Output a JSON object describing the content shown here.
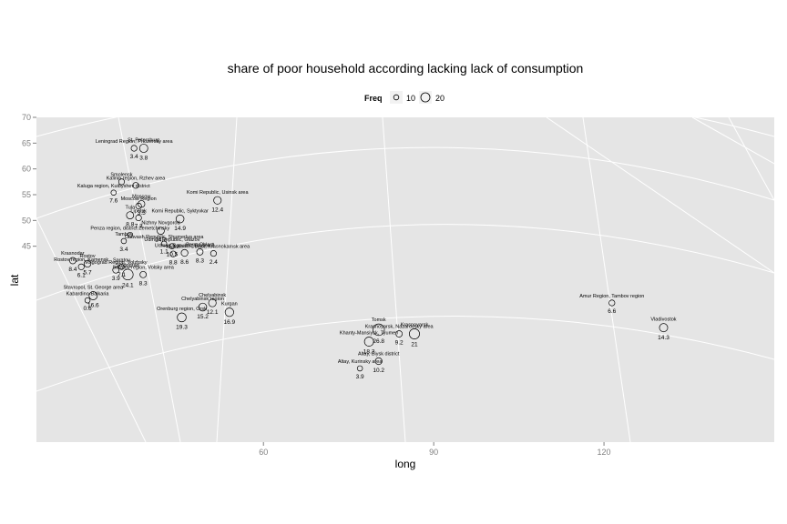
{
  "chart_data": {
    "type": "scatter",
    "title": "share of poor household according lacking lack of consumption",
    "xlabel": "long",
    "ylabel": "lat",
    "xlim": [
      20,
      150
    ],
    "ylim": [
      7,
      70
    ],
    "x_ticks": [
      60,
      90,
      120
    ],
    "y_ticks": [
      45,
      50,
      55,
      60,
      65,
      70
    ],
    "x_tick_labels": [
      "60",
      "90",
      "120"
    ],
    "y_tick_labels": [
      "45",
      "50",
      "55",
      "60",
      "65",
      "70"
    ],
    "legend": {
      "title": "Freq",
      "position": "top",
      "entries": [
        {
          "label": "10",
          "value": 10
        },
        {
          "label": "20",
          "value": 20
        }
      ]
    },
    "colors": {
      "panel": "#e5e5e5",
      "map_lines": "#ffffff",
      "point_stroke": "#000000"
    },
    "points": [
      {
        "name": "Leningrad Region, Priozersky area",
        "x": 37.2,
        "y": 64.0,
        "value": 3.4,
        "size": 3
      },
      {
        "name": "St. Petersburg",
        "x": 38.9,
        "y": 64.0,
        "value": 3.8,
        "size": 9
      },
      {
        "name": "Smolensk",
        "x": 35.0,
        "y": 57.5,
        "value": null,
        "size": 3
      },
      {
        "name": "Kalinin region, Rzhev area",
        "x": 37.5,
        "y": 56.8,
        "value": null,
        "size": 3
      },
      {
        "name": "Kaluga region, Kuibyshev district",
        "x": 33.6,
        "y": 55.4,
        "value": 7.6,
        "size": 2
      },
      {
        "name": "Moscow",
        "x": 38.5,
        "y": 53.2,
        "value": 3.5,
        "size": 5
      },
      {
        "name": "Moscow Region",
        "x": 38.0,
        "y": 52.8,
        "value": null,
        "size": 3
      },
      {
        "name": "Tula",
        "x": 36.5,
        "y": 51.0,
        "value": 8.8,
        "size": 6
      },
      {
        "name": "Lipetsk",
        "x": 38.0,
        "y": 50.5,
        "value": 7.3,
        "size": 3
      },
      {
        "name": "Nizhny Novgorod",
        "x": 41.9,
        "y": 48.0,
        "value": 14.2,
        "size": 6
      },
      {
        "name": "Penza region, district Zemetchinsky",
        "x": 36.5,
        "y": 47.2,
        "value": null,
        "size": 2
      },
      {
        "name": "Tambov",
        "x": 35.4,
        "y": 46.0,
        "value": 3.4,
        "size": 2
      },
      {
        "name": "Udmurt Republic, Glazov",
        "x": 43.9,
        "y": 45.0,
        "value": 10.5,
        "size": 2
      },
      {
        "name": "Chuvash Republic, Shumerlya area",
        "x": 42.5,
        "y": 45.5,
        "value": 1.1,
        "size": 2
      },
      {
        "name": "Komi Republic, Usinsk area",
        "x": 51.9,
        "y": 53.9,
        "value": 12.4,
        "size": 7
      },
      {
        "name": "Komi Republic, Syktyvkar",
        "x": 45.3,
        "y": 50.3,
        "value": 14.9,
        "size": 8
      },
      {
        "name": "Kazan",
        "x": 44.1,
        "y": 43.5,
        "value": 8.8,
        "size": 3
      },
      {
        "name": "Udmurt Republic, Glazov 2",
        "x": 46.1,
        "y": 43.7,
        "value": 8.6,
        "size": 5
      },
      {
        "name": "Perm Oblast",
        "x": 48.8,
        "y": 43.9,
        "value": 8.3,
        "size": 4
      },
      {
        "name": "Perm Oblast, Krasnokamsk area",
        "x": 51.2,
        "y": 43.6,
        "value": 2.4,
        "size": 3
      },
      {
        "name": "Rostov region, Kamensk",
        "x": 27.9,
        "y": 41.0,
        "value": 6.1,
        "size": 3
      },
      {
        "name": "Krasnodar",
        "x": 26.4,
        "y": 42.2,
        "value": 8.4,
        "size": 4
      },
      {
        "name": "Rostov",
        "x": 29.0,
        "y": 41.6,
        "value": 5.7,
        "size": 5
      },
      {
        "name": "Volgograd Region, Volzhsky",
        "x": 34.0,
        "y": 40.4,
        "value": 3.9,
        "size": 4
      },
      {
        "name": "Saratov",
        "x": 35.0,
        "y": 41.0,
        "value": 7.1,
        "size": 2
      },
      {
        "name": "Volgograd",
        "x": 36.1,
        "y": 39.5,
        "value": 24.1,
        "size": 18
      },
      {
        "name": "Saratov region, Volsky area",
        "x": 38.8,
        "y": 39.5,
        "value": 8.3,
        "size": 4
      },
      {
        "name": "Stavropol, St. George area",
        "x": 30.0,
        "y": 35.4,
        "value": 16.6,
        "size": 9
      },
      {
        "name": "Kabardino-Balkaria",
        "x": 29.0,
        "y": 34.5,
        "value": 0.6,
        "size": 2
      },
      {
        "name": "Orenburg region, Orsk",
        "x": 45.6,
        "y": 31.2,
        "value": 19.3,
        "size": 11
      },
      {
        "name": "Chelyabinsk region",
        "x": 49.3,
        "y": 33.2,
        "value": 15.2,
        "size": 8
      },
      {
        "name": "Chelyabinsk",
        "x": 51.0,
        "y": 34.0,
        "value": 12.1,
        "size": 7
      },
      {
        "name": "Kurgan",
        "x": 54.0,
        "y": 32.2,
        "value": 16.9,
        "size": 10
      },
      {
        "name": "Tomsk",
        "x": 80.3,
        "y": 28.8,
        "value": 26.8,
        "size": 22
      },
      {
        "name": "Khanty-Mansiysk, Tyumen",
        "x": 78.6,
        "y": 26.5,
        "value": 18.3,
        "size": 12
      },
      {
        "name": "Krasnoyarsk, Nazarovsky area",
        "x": 83.9,
        "y": 28.0,
        "value": 9.2,
        "size": 4
      },
      {
        "name": "Krasnoyarsk",
        "x": 86.6,
        "y": 28.0,
        "value": 21.0,
        "size": 16
      },
      {
        "name": "Altay, Biysk district",
        "x": 80.3,
        "y": 22.7,
        "value": 10.2,
        "size": 5
      },
      {
        "name": "Altay, Kurinsky area",
        "x": 77.0,
        "y": 21.3,
        "value": 3.9,
        "size": 2
      },
      {
        "name": "Amur Region, Tambov region",
        "x": 121.4,
        "y": 34.0,
        "value": 6.6,
        "size": 3
      },
      {
        "name": "Vladivostok",
        "x": 130.5,
        "y": 29.2,
        "value": 14.3,
        "size": 9
      }
    ]
  }
}
